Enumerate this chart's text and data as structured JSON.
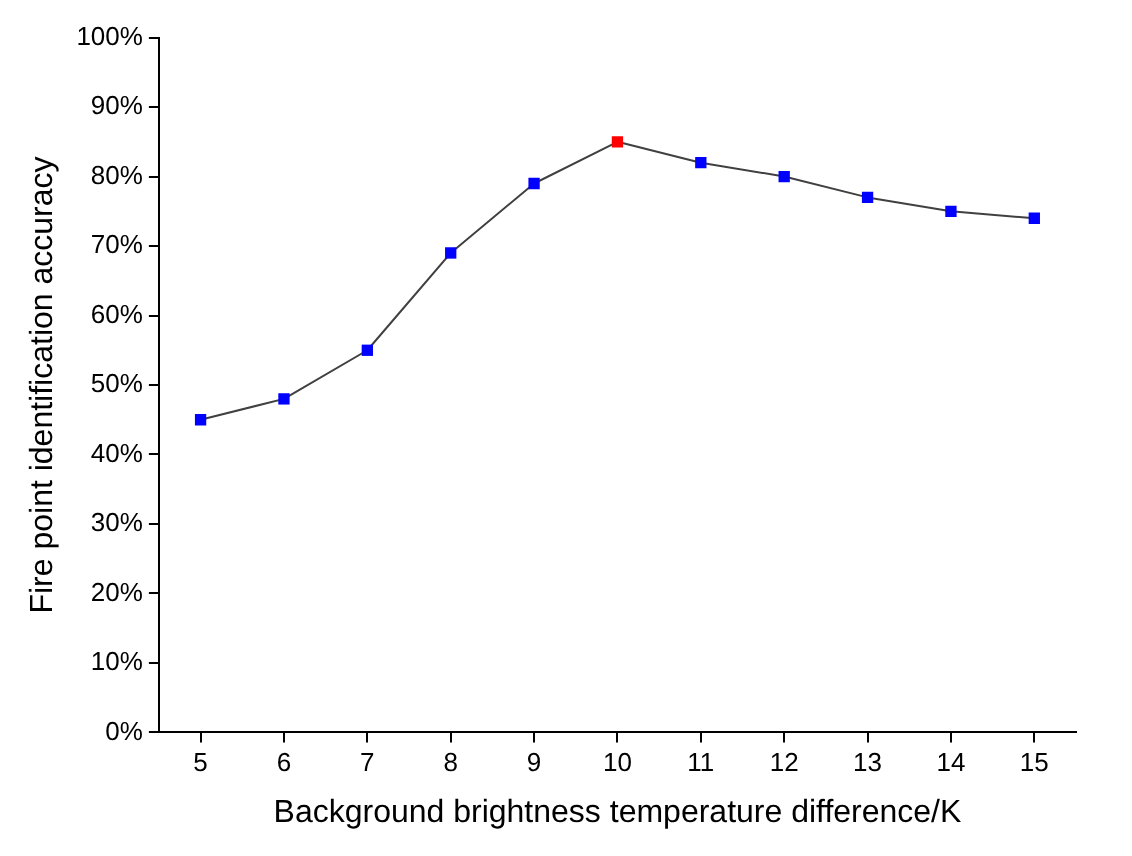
{
  "chart_data": {
    "type": "line",
    "xlabel": "Background brightness temperature difference/K",
    "ylabel": "Fire point identification accuracy",
    "x": [
      5,
      6,
      7,
      8,
      9,
      10,
      11,
      12,
      13,
      14,
      15
    ],
    "series": [
      {
        "color": "#404040",
        "colors": [
          "#0000ff",
          "#0000ff",
          "#0000ff",
          "#0000ff",
          "#0000ff",
          "#ff0000",
          "#0000ff",
          "#0000ff",
          "#0000ff",
          "#0000ff",
          "#0000ff"
        ],
        "values": [
          45,
          48,
          55,
          69,
          79,
          85,
          82,
          80,
          77,
          75,
          74
        ]
      }
    ],
    "xlim": [
      4.5,
      15.5
    ],
    "xticks": [
      5,
      6,
      7,
      8,
      9,
      10,
      11,
      12,
      13,
      14,
      15
    ],
    "ylim": [
      0,
      100
    ],
    "yticks": [
      {
        "value": 0,
        "label": "0%"
      },
      {
        "value": 10,
        "label": "10%"
      },
      {
        "value": 20,
        "label": "20%"
      },
      {
        "value": 30,
        "label": "30%"
      },
      {
        "value": 40,
        "label": "40%"
      },
      {
        "value": 50,
        "label": "50%"
      },
      {
        "value": 60,
        "label": "60%"
      },
      {
        "value": 70,
        "label": "70%"
      },
      {
        "value": 80,
        "label": "80%"
      },
      {
        "value": 90,
        "label": "90%"
      },
      {
        "value": 100,
        "label": "100%"
      }
    ],
    "grid": false,
    "legend": false,
    "marker": "square",
    "line_style": "solid"
  }
}
